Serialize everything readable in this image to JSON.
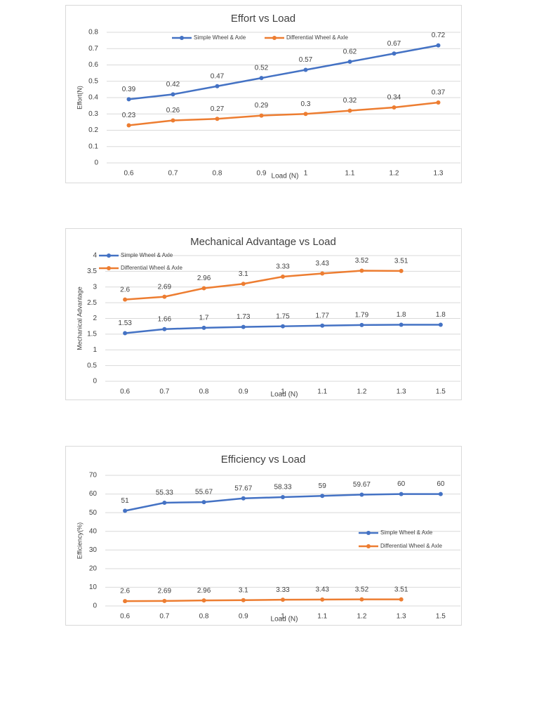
{
  "chart_data": [
    {
      "type": "line",
      "title": "Effort vs Load",
      "x_label": "Load (N)",
      "y_label": "Effort(N)",
      "categories": [
        "0.6",
        "0.7",
        "0.8",
        "0.9",
        "1",
        "1.1",
        "1.2",
        "1.3"
      ],
      "series": [
        {
          "name": "Simple Wheel & Axle",
          "color": "#4472c4",
          "values": [
            0.39,
            0.42,
            0.47,
            0.52,
            0.57,
            0.62,
            0.67,
            0.72
          ]
        },
        {
          "name": "Differential Wheel & Axle",
          "color": "#ed7d31",
          "values": [
            0.23,
            0.26,
            0.27,
            0.29,
            0.3,
            0.32,
            0.34,
            0.37
          ]
        }
      ],
      "ylim": [
        0,
        0.8
      ],
      "yticks": [
        0,
        0.1,
        0.2,
        0.3,
        0.4,
        0.5,
        0.6,
        0.7,
        0.8
      ],
      "grid": true,
      "legend": "top"
    },
    {
      "type": "line",
      "title": "Mechanical Advantage vs Load",
      "x_label": "Load (N)",
      "y_label": "Mechanical Advantage",
      "categories": [
        "0.6",
        "0.7",
        "0.8",
        "0.9",
        "1",
        "1.1",
        "1.2",
        "1.3",
        "1.5"
      ],
      "series": [
        {
          "name": "Simple Wheel & Axle",
          "color": "#4472c4",
          "values": [
            1.53,
            1.66,
            1.7,
            1.73,
            1.75,
            1.77,
            1.79,
            1.8,
            1.8
          ]
        },
        {
          "name": "Differential Wheel & Axle",
          "color": "#ed7d31",
          "values": [
            2.6,
            2.69,
            2.96,
            3.1,
            3.33,
            3.43,
            3.52,
            3.51,
            null
          ]
        }
      ],
      "ylim": [
        0,
        4
      ],
      "yticks": [
        0,
        0.5,
        1,
        1.5,
        2,
        2.5,
        3,
        3.5,
        4
      ],
      "grid": true,
      "legend": "top-left"
    },
    {
      "type": "line",
      "title": "Efficiency vs Load",
      "x_label": "Load (N)",
      "y_label": "Efficiency(%)",
      "categories": [
        "0.6",
        "0.7",
        "0.8",
        "0.9",
        "1",
        "1.1",
        "1.2",
        "1.3",
        "1.5"
      ],
      "series": [
        {
          "name": "Simple Wheel & Axle",
          "color": "#4472c4",
          "values": [
            51,
            55.33,
            55.67,
            57.67,
            58.33,
            59,
            59.67,
            60,
            60
          ]
        },
        {
          "name": "Differential Wheel & Axle",
          "color": "#ed7d31",
          "values": [
            2.6,
            2.69,
            2.96,
            3.1,
            3.33,
            3.43,
            3.52,
            3.51,
            null
          ]
        }
      ],
      "ylim": [
        0,
        70
      ],
      "yticks": [
        0,
        10,
        20,
        30,
        40,
        50,
        60,
        70
      ],
      "grid": true,
      "legend": "right"
    }
  ]
}
